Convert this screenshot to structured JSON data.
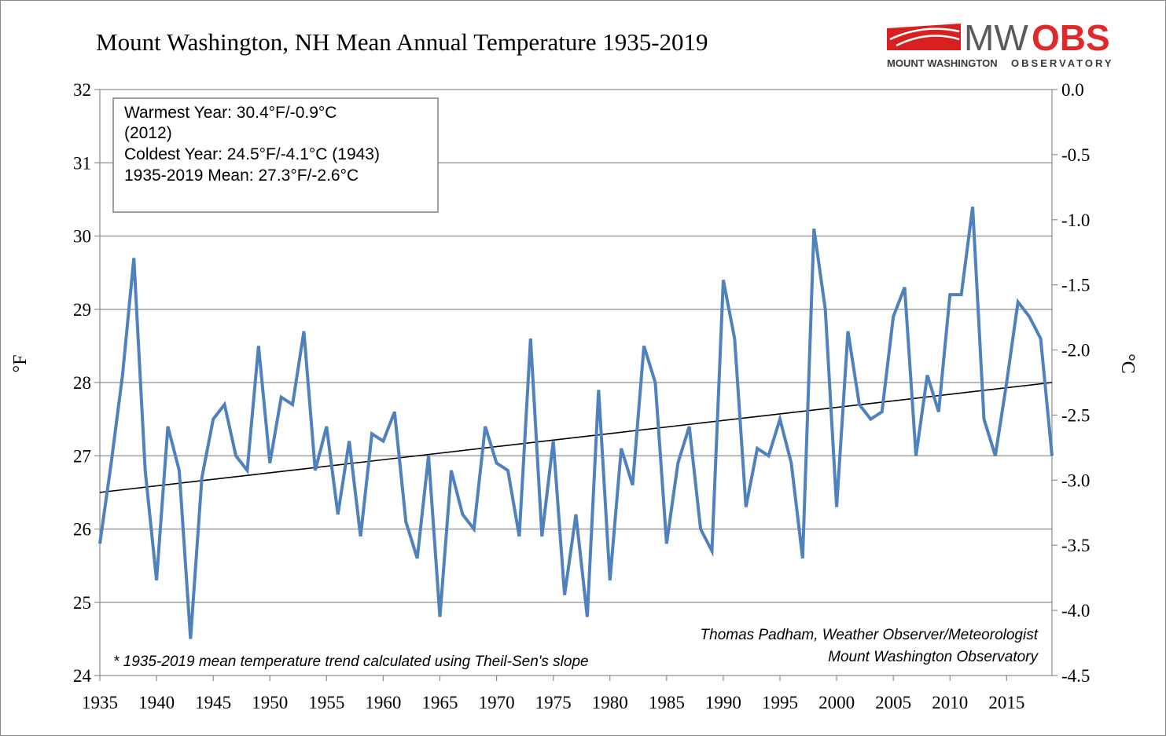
{
  "chart_data": {
    "type": "line",
    "title": "Mount Washington, NH Mean Annual Temperature 1935-2019",
    "ylabel": "°F",
    "y2label": "°C",
    "x_tick_labels": [
      "1935",
      "1940",
      "1945",
      "1950",
      "1955",
      "1960",
      "1965",
      "1970",
      "1975",
      "1980",
      "1985",
      "1990",
      "1995",
      "2000",
      "2005",
      "2010",
      "2015"
    ],
    "y_tick_labels": [
      "24",
      "25",
      "26",
      "27",
      "28",
      "29",
      "30",
      "31",
      "32"
    ],
    "y2_tick_labels": [
      "-4.5",
      "-4.0",
      "-3.5",
      "-3.0",
      "-2.5",
      "-2.0",
      "-1.5",
      "-1.0",
      "-0.5",
      "0.0"
    ],
    "xlim": [
      1935,
      2019
    ],
    "ylim": [
      24,
      32
    ],
    "y2lim": [
      -4.5,
      0.0
    ],
    "grid": "horizontal",
    "series_color": "#4f81bd",
    "trend_color": "#000000",
    "series": [
      {
        "x": [
          1935,
          1936,
          1937,
          1938,
          1939,
          1940,
          1941,
          1942,
          1943,
          1944,
          1945,
          1946,
          1947,
          1948,
          1949,
          1950,
          1951,
          1952,
          1953,
          1954,
          1955,
          1956,
          1957,
          1958,
          1959,
          1960,
          1961,
          1962,
          1963,
          1964,
          1965,
          1966,
          1967,
          1968,
          1969,
          1970,
          1971,
          1972,
          1973,
          1974,
          1975,
          1976,
          1977,
          1978,
          1979,
          1980,
          1981,
          1982,
          1983,
          1984,
          1985,
          1986,
          1987,
          1988,
          1989,
          1990,
          1991,
          1992,
          1993,
          1994,
          1995,
          1996,
          1997,
          1998,
          1999,
          2000,
          2001,
          2002,
          2003,
          2004,
          2005,
          2006,
          2007,
          2008,
          2009,
          2010,
          2011,
          2012,
          2013,
          2014,
          2015,
          2016,
          2017,
          2018,
          2019
        ],
        "values": [
          25.8,
          26.9,
          28.1,
          29.7,
          26.8,
          25.3,
          27.4,
          26.8,
          24.5,
          26.7,
          27.5,
          27.7,
          27.0,
          26.8,
          28.5,
          26.9,
          27.8,
          27.7,
          28.7,
          26.8,
          27.4,
          26.2,
          27.2,
          25.9,
          27.3,
          27.2,
          27.6,
          26.1,
          25.6,
          27.0,
          24.8,
          26.8,
          26.2,
          26.0,
          27.4,
          26.9,
          26.8,
          25.9,
          28.6,
          25.9,
          27.2,
          25.1,
          26.2,
          24.8,
          27.9,
          25.3,
          27.1,
          26.6,
          28.5,
          28.0,
          25.8,
          26.9,
          27.4,
          26.0,
          25.7,
          29.4,
          28.6,
          26.3,
          27.1,
          27.0,
          27.5,
          26.9,
          25.6,
          30.1,
          29.0,
          26.3,
          28.7,
          27.7,
          27.5,
          27.6,
          28.9,
          29.3,
          27.0,
          28.1,
          27.6,
          29.2,
          29.2,
          30.4,
          27.5,
          27.0,
          28.0,
          29.1,
          28.9,
          28.6,
          27.0
        ]
      }
    ],
    "trend": {
      "x": [
        1935,
        2019
      ],
      "y": [
        26.5,
        28.0
      ]
    },
    "info_box": {
      "line1": "Warmest Year: 30.4°F/-0.9°C",
      "line2": "(2012)",
      "line3": "Coldest Year: 24.5°F/-4.1°C (1943)",
      "line4": "1935-2019 Mean: 27.3°F/-2.6°C"
    },
    "trend_note": "* 1935-2019 mean temperature trend calculated using Theil-Sen's slope",
    "credit": {
      "line1": "Thomas Padham, Weather Observer/Meteorologist",
      "line2": "Mount Washington Observatory"
    }
  },
  "logo": {
    "mw": "MW",
    "obs": "OBS",
    "name_bold": "MOUNT WASHINGTON",
    "name_light": "OBSERVATORY",
    "red": "#e02a2a",
    "gray": "#5a5a5a"
  }
}
